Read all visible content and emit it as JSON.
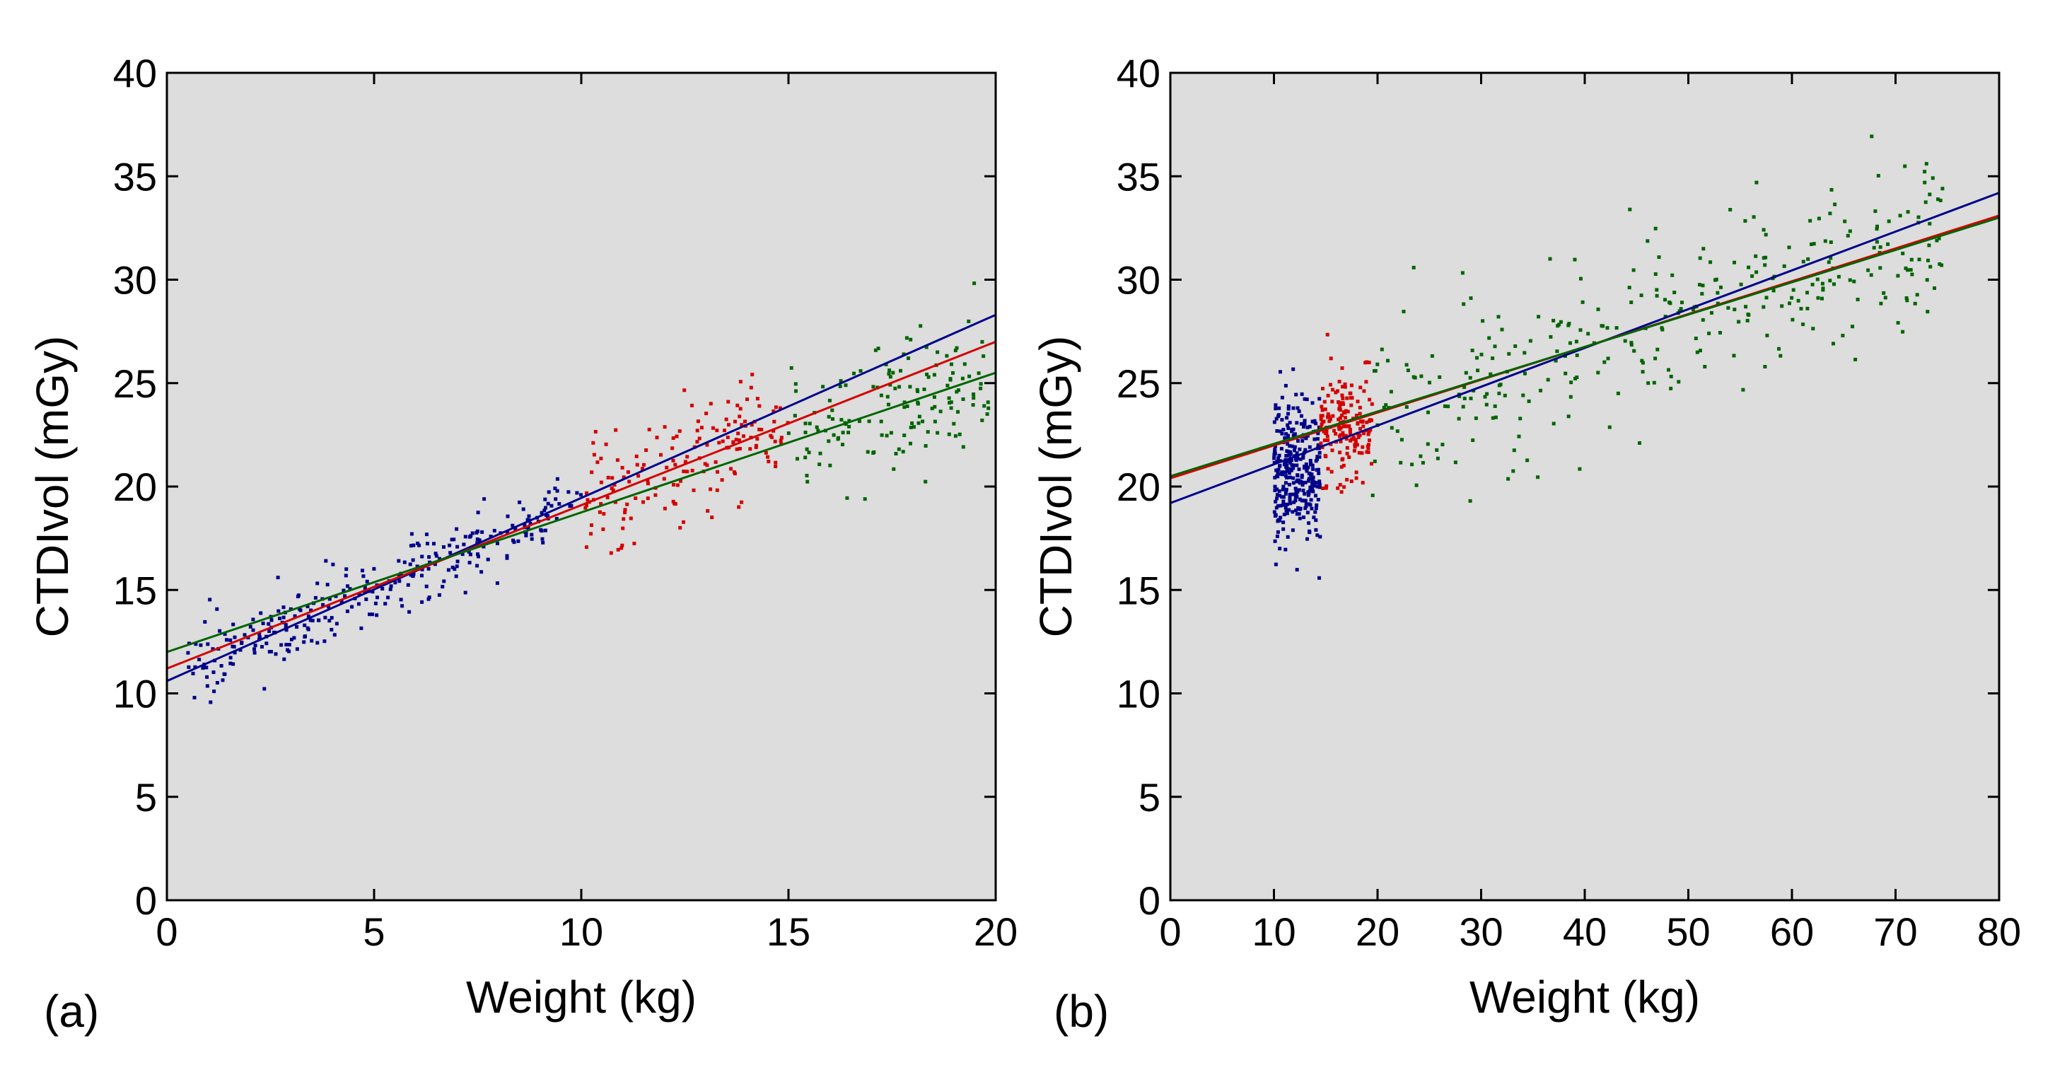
{
  "chart_data": [
    {
      "type": "scatter",
      "panel_label": "(a)",
      "xlabel": "Weight (kg)",
      "ylabel": "CTDIvol (mGy)",
      "xlim": [
        0,
        20
      ],
      "ylim": [
        0,
        40
      ],
      "xticks": [
        0,
        5,
        10,
        15,
        20
      ],
      "yticks": [
        0,
        5,
        10,
        15,
        20,
        25,
        30,
        35,
        40
      ],
      "grid": false,
      "background": "#dcdddc",
      "series": [
        {
          "color": "#00008b",
          "x_range": [
            0.5,
            10
          ],
          "trend": {
            "intercept": 10.6,
            "slope": 0.885
          },
          "spread": 0.9,
          "count": 300
        },
        {
          "color": "#d40000",
          "x_range": [
            10,
            15
          ],
          "trend": {
            "intercept": 11.2,
            "slope": 0.79
          },
          "spread": 1.3,
          "count": 170
        },
        {
          "color": "#006400",
          "x_range": [
            15,
            20
          ],
          "trend": {
            "intercept": 12.0,
            "slope": 0.675
          },
          "spread": 1.6,
          "count": 150
        }
      ],
      "fit_lines": [
        {
          "color": "#00008b",
          "x": [
            0,
            20
          ],
          "y": [
            10.6,
            28.3
          ]
        },
        {
          "color": "#d40000",
          "x": [
            0,
            20
          ],
          "y": [
            11.2,
            27.0
          ]
        },
        {
          "color": "#006400",
          "x": [
            0,
            20
          ],
          "y": [
            12.0,
            25.5
          ]
        }
      ]
    },
    {
      "type": "scatter",
      "panel_label": "(b)",
      "xlabel": "Weight (kg)",
      "ylabel": "CTDIvol (mGy)",
      "xlim": [
        0,
        80
      ],
      "ylim": [
        0,
        40
      ],
      "xticks": [
        0,
        10,
        20,
        30,
        40,
        50,
        60,
        70,
        80
      ],
      "yticks": [
        0,
        5,
        10,
        15,
        20,
        25,
        30,
        35,
        40
      ],
      "grid": false,
      "background": "#dcdddc",
      "series": [
        {
          "color": "#00008b",
          "x_range": [
            10,
            14.5
          ],
          "trend": {
            "intercept": 20.8,
            "slope": 0.0
          },
          "spread": 1.7,
          "count": 320
        },
        {
          "color": "#d40000",
          "x_range": [
            14.5,
            19.5
          ],
          "trend": {
            "intercept": 22.8,
            "slope": 0.0
          },
          "spread": 1.4,
          "count": 170
        },
        {
          "color": "#006400",
          "x_range": [
            19.5,
            75
          ],
          "trend": {
            "intercept": 20.4,
            "slope": 0.158
          },
          "spread": 2.0,
          "count": 330
        }
      ],
      "fit_lines": [
        {
          "color": "#00008b",
          "x": [
            0,
            80
          ],
          "y": [
            19.2,
            34.2
          ]
        },
        {
          "color": "#d40000",
          "x": [
            0,
            80
          ],
          "y": [
            20.4,
            33.1
          ]
        },
        {
          "color": "#006400",
          "x": [
            0,
            80
          ],
          "y": [
            20.5,
            33.0
          ]
        }
      ]
    }
  ]
}
